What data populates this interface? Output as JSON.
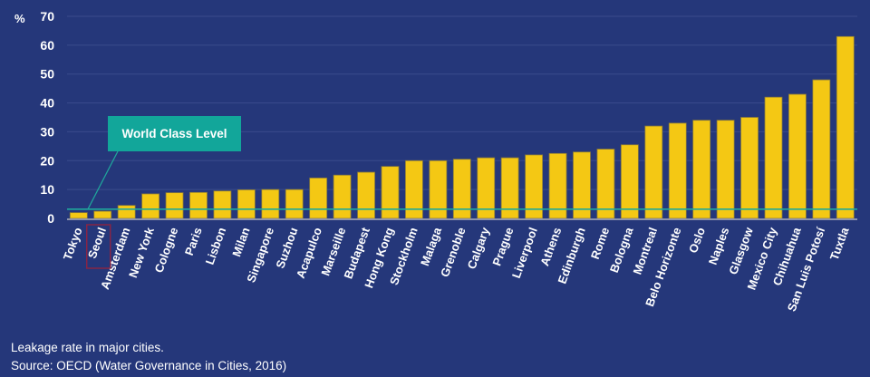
{
  "chart_data": {
    "type": "bar",
    "title": "",
    "xlabel": "",
    "ylabel": "%",
    "ylim": [
      0,
      70
    ],
    "yticks": [
      0,
      10,
      20,
      30,
      40,
      50,
      60,
      70
    ],
    "grid": true,
    "categories": [
      "Tokyo",
      "Seoul",
      "Amsterdam",
      "New York",
      "Cologne",
      "Paris",
      "Lisbon",
      "Milan",
      "Singapore",
      "Suzhou",
      "Acapulco",
      "Marseille",
      "Budapest",
      "Hong Kong",
      "Stockholm",
      "Malaga",
      "Grenoble",
      "Calgary",
      "Prague",
      "Liverpool",
      "Athens",
      "Edinburgh",
      "Rome",
      "Bologna",
      "Montreal",
      "Belo Horizonte",
      "Oslo",
      "Naples",
      "Glasgow",
      "Mexico City",
      "Chihuahua",
      "San Luis Potosí",
      "Tuxtla"
    ],
    "values": [
      2.0,
      2.5,
      4.5,
      8.5,
      8.9,
      9.0,
      9.5,
      9.9,
      10.0,
      10.0,
      14.0,
      15.0,
      16.0,
      18.0,
      20.0,
      20.0,
      20.5,
      21.0,
      21.0,
      22.0,
      22.5,
      23.0,
      24.0,
      25.5,
      32.0,
      33.0,
      34.0,
      34.0,
      35.0,
      42.0,
      43.0,
      48.0,
      63.0
    ],
    "reference_line": {
      "label": "World Class Level",
      "value": 3.2,
      "color": "#1fa89c"
    },
    "highlighted_category": "Seoul",
    "colors": {
      "bar": "#f4c814",
      "background": "#25377a",
      "annotation_box": "#12a69a",
      "highlight_border": "#8e2442"
    }
  },
  "caption": {
    "line1": "Leakage rate in major cities.",
    "line2": "Source: OECD (Water Governance in Cities, 2016)"
  }
}
